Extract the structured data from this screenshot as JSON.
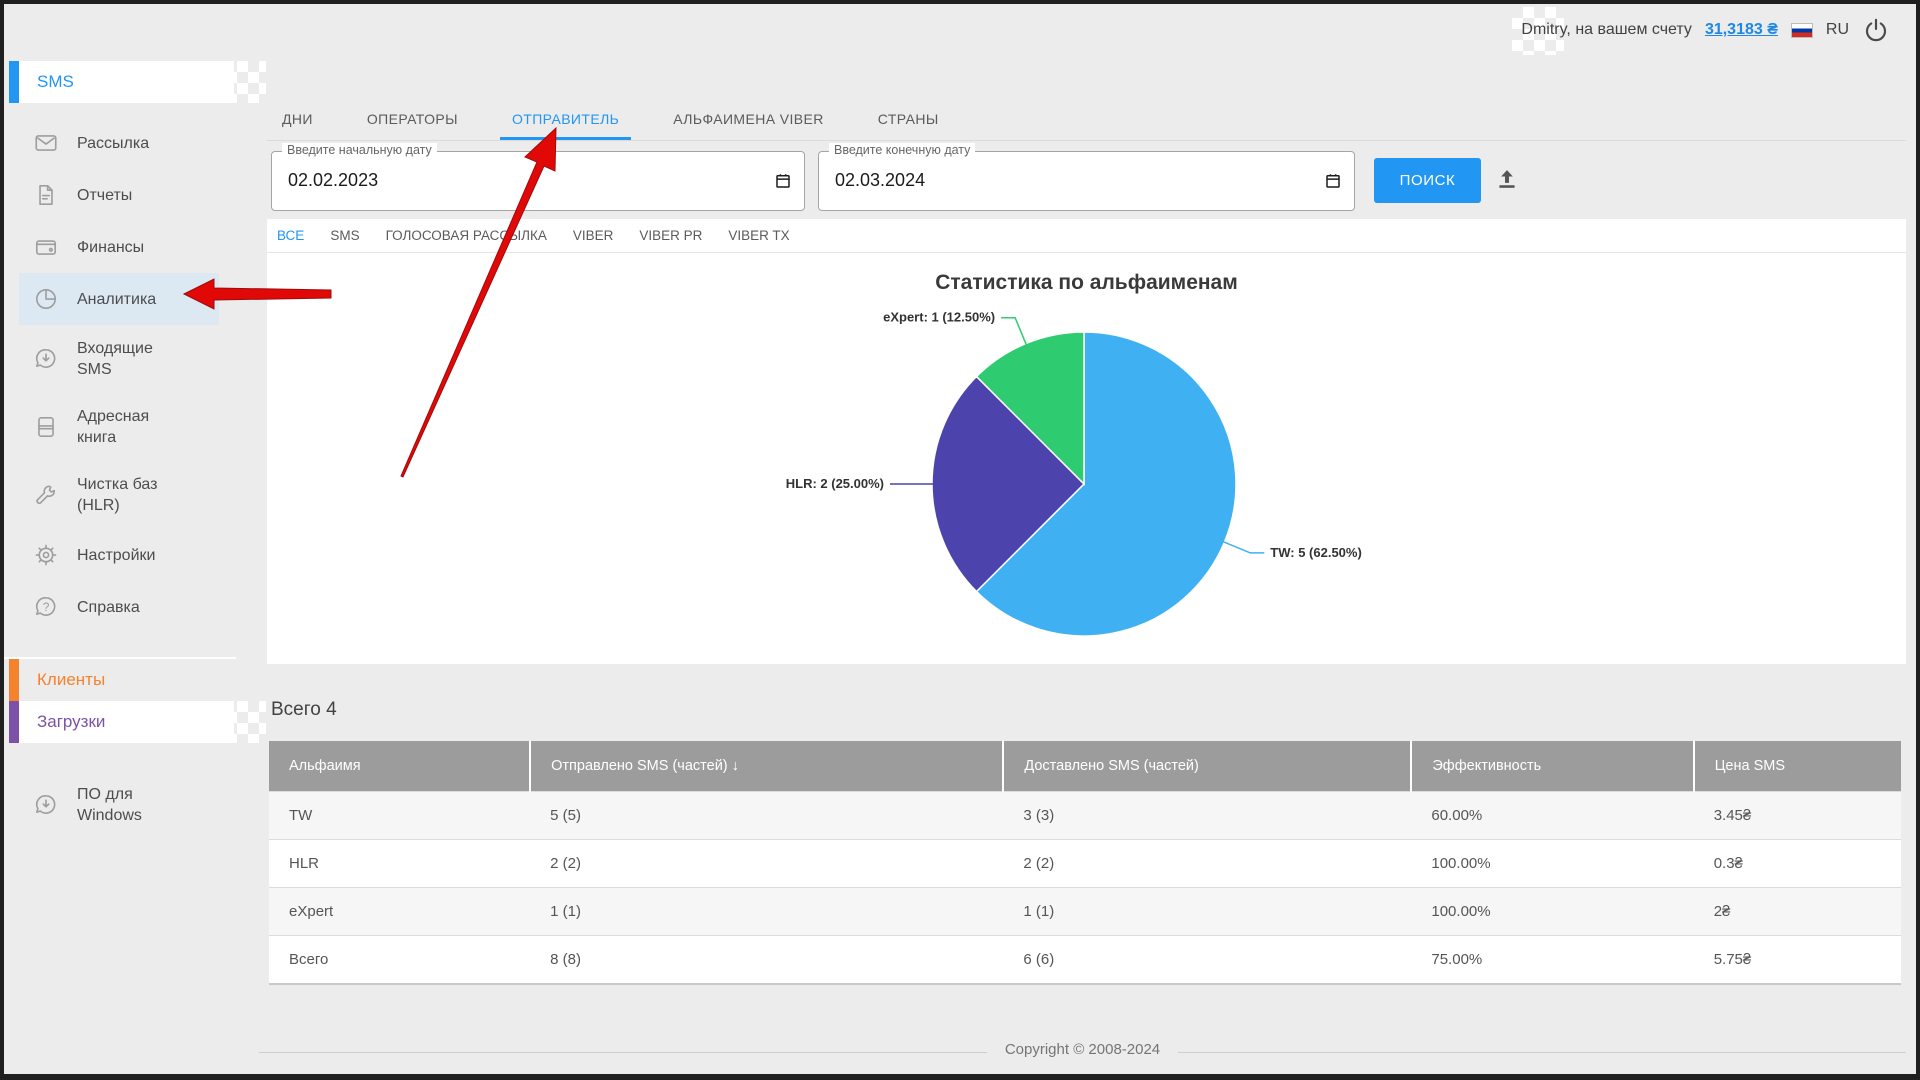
{
  "header": {
    "greeting": "Dmitry, на вашем счету",
    "balance": "31,3183 ₴",
    "language": "RU"
  },
  "sidebar": {
    "section_title": "SMS",
    "items": [
      {
        "label": "Рассылка",
        "icon": "envelope-icon"
      },
      {
        "label": "Отчеты",
        "icon": "report-icon"
      },
      {
        "label": "Финансы",
        "icon": "wallet-icon"
      },
      {
        "label": "Аналитика",
        "icon": "pie-chart-icon",
        "active": true
      },
      {
        "label": "Входящие SMS",
        "icon": "incoming-sms-icon"
      },
      {
        "label": "Адресная книга",
        "icon": "address-book-icon"
      },
      {
        "label": "Чистка баз (HLR)",
        "icon": "wrench-icon"
      },
      {
        "label": "Настройки",
        "icon": "gear-icon"
      },
      {
        "label": "Справка",
        "icon": "help-icon"
      }
    ],
    "clients_label": "Клиенты",
    "downloads_label": "Загрузки",
    "software_label": "ПО для Windows"
  },
  "tabs": {
    "items": [
      "ДНИ",
      "ОПЕРАТОРЫ",
      "ОТПРАВИТЕЛЬ",
      "АЛЬФАИМЕНА VIBER",
      "СТРАНЫ"
    ],
    "active": "ОТПРАВИТЕЛЬ"
  },
  "date_filter": {
    "start_label": "Введите начальную дату",
    "start_value": "02.02.2023",
    "end_label": "Введите конечную дату",
    "end_value": "02.03.2024",
    "search_button": "ПОИСК"
  },
  "channels": {
    "items": [
      "ВСЕ",
      "SMS",
      "ГОЛОСОВАЯ РАССЫЛКА",
      "VIBER",
      "VIBER PR",
      "VIBER TX"
    ],
    "active": "ВСЕ"
  },
  "chart_data": {
    "type": "pie",
    "title": "Статистика по альфаименам",
    "total": 8,
    "direction": "clockwise",
    "start_angle_deg": -90,
    "slices": [
      {
        "name": "TW",
        "value": 5,
        "percent": "62.50%",
        "color": "#3FB0F2"
      },
      {
        "name": "HLR",
        "value": 2,
        "percent": "25.00%",
        "color": "#4C44AC"
      },
      {
        "name": "eXpert",
        "value": 1,
        "percent": "12.50%",
        "color": "#2FCB70"
      }
    ]
  },
  "table": {
    "total_label": "Всего 4",
    "columns": [
      "Альфаимя",
      "Отправлено SMS (частей)",
      "Доставлено SMS (частей)",
      "Эффективность",
      "Цена SMS"
    ],
    "sort": {
      "column": "Отправлено SMS (частей)",
      "direction": "desc",
      "icon": "↓"
    },
    "rows": [
      {
        "name": "TW",
        "sent": "5 (5)",
        "delivered": "3 (3)",
        "efficiency": "60.00%",
        "price": "3.45₴"
      },
      {
        "name": "HLR",
        "sent": "2 (2)",
        "delivered": "2 (2)",
        "efficiency": "100.00%",
        "price": "0.3₴"
      },
      {
        "name": "eXpert",
        "sent": "1 (1)",
        "delivered": "1 (1)",
        "efficiency": "100.00%",
        "price": "2₴"
      },
      {
        "name": "Всего",
        "sent": "8 (8)",
        "delivered": "6 (6)",
        "efficiency": "75.00%",
        "price": "5.75₴"
      }
    ]
  },
  "footer": {
    "copyright": "Copyright © 2008-2024"
  },
  "colors": {
    "accent_blue": "#2196F3",
    "clients_orange": "#F5822D",
    "downloads_purple": "#7B52A8",
    "arrow_red": "#E10808",
    "table_header_gray": "#9C9C9C",
    "selected_item_bg": "#DCE9F2"
  }
}
